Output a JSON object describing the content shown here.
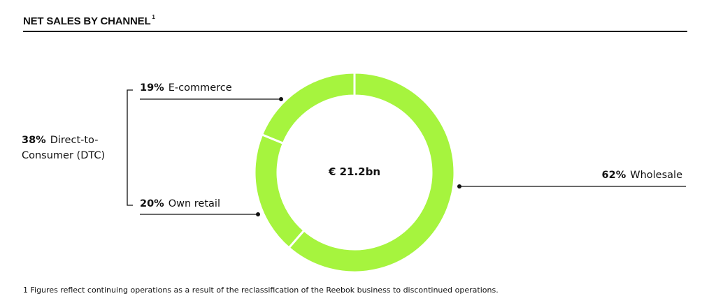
{
  "title": "NET SALES BY CHANNEL",
  "title_footnote_mark": "1",
  "center_label": "€ 21.2bn",
  "group_label": {
    "pct": "38%",
    "line1": "Direct-to-",
    "line2": "Consumer (DTC)"
  },
  "footnote": "1 Figures reflect continuing operations as a result of the reclassification of the Reebok business to discontinued operations.",
  "colors": {
    "slice": "#a6f43e",
    "separator": "#ffffff",
    "leader": "#111111"
  },
  "chart_data": {
    "type": "pie",
    "variant": "donut",
    "title": "NET SALES BY CHANNEL",
    "total_label": "€ 21.2bn",
    "slices": [
      {
        "name": "Wholesale",
        "value": 62,
        "label": "62%"
      },
      {
        "name": "Own retail",
        "value": 20,
        "label": "20%"
      },
      {
        "name": "E-commerce",
        "value": 19,
        "label": "19%"
      }
    ],
    "groups": [
      {
        "name": "Direct-to-Consumer (DTC)",
        "value": 38,
        "label": "38%",
        "members": [
          "E-commerce",
          "Own retail"
        ]
      }
    ]
  }
}
